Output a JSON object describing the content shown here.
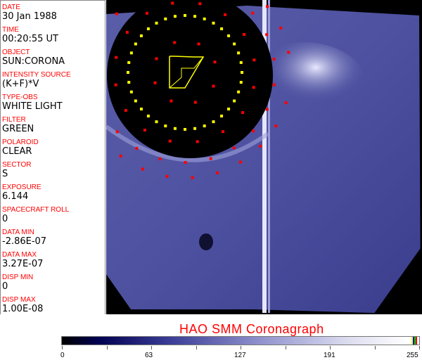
{
  "header_fields": [
    {
      "label": "DATE",
      "value": "30 Jan 1988"
    },
    {
      "label": "TIME",
      "value": "00:20:55 UT"
    },
    {
      "label": "OBJECT",
      "value": "SUN:CORONA"
    },
    {
      "label": "INTENSITY SOURCE",
      "value": "(K+F)*V"
    },
    {
      "label": "TYPE-OBS",
      "value": "WHITE LIGHT"
    },
    {
      "label": "FILTER",
      "value": "GREEN"
    },
    {
      "label": "POLAROID",
      "value": "CLEAR"
    },
    {
      "label": "SECTOR",
      "value": "S"
    },
    {
      "label": "EXPOSURE",
      "value": "6.144"
    },
    {
      "label": "SPACECRAFT ROLL",
      "value": "0"
    },
    {
      "label": "DATA MIN",
      "value": "-2.86E-07"
    },
    {
      "label": "DATA MAX",
      "value": "3.27E-07"
    },
    {
      "label": "DISP MIN",
      "value": "0"
    },
    {
      "label": "DISP MAX",
      "value": "1.00E-08"
    }
  ],
  "title": "HAO  SMM Coronagraph",
  "colorbar": {
    "ticks": [
      "0",
      "63",
      "127",
      "191",
      "255"
    ],
    "range": [
      0,
      255
    ],
    "end_colors": [
      "#ffff00",
      "#0000ff",
      "#00c000",
      "#ff0000"
    ]
  },
  "colors": {
    "label": "#ff0000",
    "marker_yellow": "#ffff00",
    "marker_red": "#ff0000",
    "image_tint": "#4a4ea0"
  }
}
